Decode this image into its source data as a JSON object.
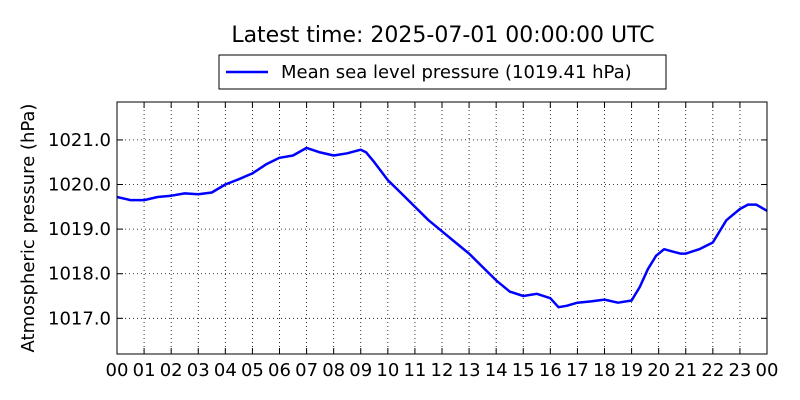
{
  "chart_data": {
    "type": "line",
    "title": "Latest time: 2025-07-01 00:00:00 UTC",
    "xlabel": "",
    "ylabel": "Atmospheric pressure (hPa)",
    "xlim": [
      0,
      24
    ],
    "ylim": [
      1016.2,
      1021.85
    ],
    "xticks": [
      0,
      1,
      2,
      3,
      4,
      5,
      6,
      7,
      8,
      9,
      10,
      11,
      12,
      13,
      14,
      15,
      16,
      17,
      18,
      19,
      20,
      21,
      22,
      23,
      24
    ],
    "xtick_labels": [
      "00",
      "01",
      "02",
      "03",
      "04",
      "05",
      "06",
      "07",
      "08",
      "09",
      "10",
      "11",
      "12",
      "13",
      "14",
      "15",
      "16",
      "17",
      "18",
      "19",
      "20",
      "21",
      "22",
      "23",
      "00"
    ],
    "yticks": [
      1017.0,
      1018.0,
      1019.0,
      1020.0,
      1021.0
    ],
    "ytick_labels": [
      "1017.0",
      "1018.0",
      "1019.0",
      "1020.0",
      "1021.0"
    ],
    "grid": true,
    "legend_position": "top-center",
    "series": [
      {
        "name": "Mean sea level pressure (1019.41 hPa)",
        "color": "#0000ff",
        "x": [
          0,
          0.5,
          1,
          1.5,
          2,
          2.5,
          3,
          3.5,
          4,
          4.5,
          5,
          5.5,
          6,
          6.5,
          7,
          7.5,
          8,
          8.5,
          9,
          9.2,
          9.5,
          10,
          10.5,
          11,
          11.5,
          12,
          12.5,
          13,
          13.5,
          14,
          14.5,
          15,
          15.5,
          16,
          16.3,
          16.6,
          17,
          17.5,
          18,
          18.5,
          19,
          19.3,
          19.6,
          19.9,
          20.2,
          20.5,
          20.8,
          21,
          21.5,
          22,
          22.5,
          23,
          23.3,
          23.6,
          24
        ],
        "y": [
          1019.72,
          1019.65,
          1019.65,
          1019.72,
          1019.75,
          1019.8,
          1019.78,
          1019.82,
          1020.0,
          1020.12,
          1020.25,
          1020.45,
          1020.6,
          1020.65,
          1020.82,
          1020.72,
          1020.65,
          1020.7,
          1020.78,
          1020.72,
          1020.5,
          1020.1,
          1019.8,
          1019.5,
          1019.2,
          1018.95,
          1018.7,
          1018.45,
          1018.15,
          1017.85,
          1017.6,
          1017.5,
          1017.55,
          1017.45,
          1017.25,
          1017.28,
          1017.35,
          1017.38,
          1017.42,
          1017.35,
          1017.4,
          1017.7,
          1018.1,
          1018.4,
          1018.55,
          1018.5,
          1018.45,
          1018.45,
          1018.55,
          1018.7,
          1019.2,
          1019.45,
          1019.55,
          1019.55,
          1019.41
        ]
      }
    ]
  }
}
